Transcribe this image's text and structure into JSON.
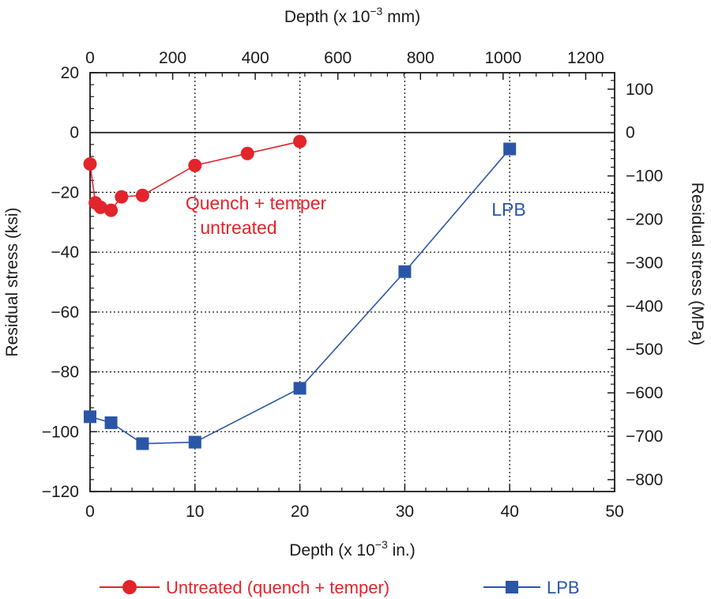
{
  "chart_data": {
    "type": "line",
    "xlabel": "Depth (x 10",
    "xlabel_exp": "−3",
    "xlabel_unit": " in.)",
    "top_xlabel": "Depth (x 10",
    "top_xlabel_exp": "−3",
    "top_xlabel_unit": " mm)",
    "ylabel": "Residual stress (ksi)",
    "right_ylabel": "Residual stress (MPa)",
    "xlim": [
      0,
      50
    ],
    "ylim": [
      -120,
      20
    ],
    "x_ticks": [
      0,
      10,
      20,
      30,
      40,
      50
    ],
    "y_ticks": [
      -120,
      -100,
      -80,
      -60,
      -40,
      -20,
      0,
      20
    ],
    "top_x_ticks": [
      0,
      200,
      400,
      600,
      800,
      1000,
      1200
    ],
    "top_xlim": [
      0,
      1270
    ],
    "right_y_ticks": [
      -800,
      -700,
      -600,
      -500,
      -400,
      -300,
      -200,
      -100,
      0,
      100
    ],
    "right_ylim": [
      -827.4,
      137.9
    ],
    "grid": "dotted",
    "legend_position": "bottom",
    "annotations": {
      "red_line1": "Quench + temper",
      "red_line2": "untreated",
      "blue": "LPB"
    },
    "colors": {
      "red": "#e2242b",
      "blue": "#2b56a7",
      "axis": "#1a1a1a"
    },
    "series": [
      {
        "name": "Untreated (quench + temper)",
        "marker": "circle",
        "color": "#e2242b",
        "x": [
          0,
          0.5,
          1,
          2,
          3,
          5,
          10,
          15,
          20
        ],
        "y": [
          -10.5,
          -23.5,
          -25,
          -26,
          -21.5,
          -21,
          -11,
          -7,
          -3
        ]
      },
      {
        "name": "LPB",
        "marker": "square",
        "color": "#2b56a7",
        "x": [
          0,
          2,
          5,
          10,
          20,
          30,
          40
        ],
        "y": [
          -95,
          -97,
          -104,
          -103.5,
          -85.5,
          -46.5,
          -5.5
        ]
      }
    ]
  }
}
